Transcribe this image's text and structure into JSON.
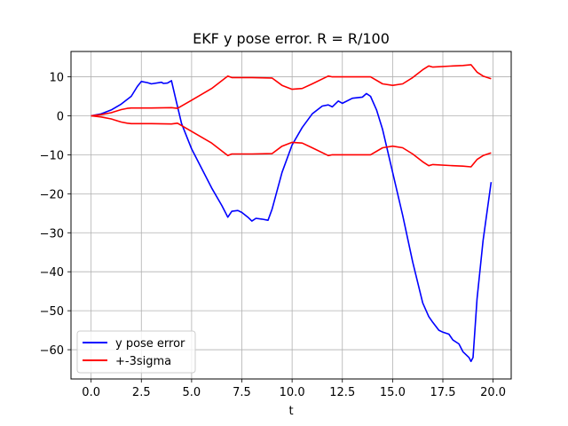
{
  "chart_data": {
    "type": "line",
    "title": "EKF y pose error. R = R/100",
    "xlabel": "t",
    "ylabel": "",
    "xlim": [
      -1.0,
      20.9
    ],
    "ylim": [
      -67.5,
      16.5
    ],
    "x_ticks": [
      0.0,
      2.5,
      5.0,
      7.5,
      10.0,
      12.5,
      15.0,
      17.5,
      20.0
    ],
    "x_tick_labels": [
      "0.0",
      "2.5",
      "5.0",
      "7.5",
      "10.0",
      "12.5",
      "15.0",
      "17.5",
      "20.0"
    ],
    "y_ticks": [
      10,
      0,
      -10,
      -20,
      -30,
      -40,
      -50,
      -60
    ],
    "y_tick_labels": [
      "10",
      "0",
      "−10",
      "−20",
      "−30",
      "−40",
      "−50",
      "−60"
    ],
    "grid": true,
    "legend_position": "lower-left",
    "series": [
      {
        "name": "y pose error",
        "color": "#0000ff",
        "x": [
          0,
          0.5,
          1.0,
          1.5,
          2.0,
          2.3,
          2.5,
          2.8,
          3.0,
          3.5,
          3.6,
          3.8,
          4.0,
          4.2,
          4.5,
          5.0,
          5.5,
          6.0,
          6.5,
          6.8,
          7.0,
          7.3,
          7.5,
          7.8,
          8.0,
          8.2,
          8.5,
          8.8,
          9.0,
          9.5,
          10.0,
          10.5,
          11.0,
          11.5,
          11.8,
          12.0,
          12.3,
          12.5,
          13.0,
          13.5,
          13.7,
          13.9,
          14.2,
          14.5,
          15.0,
          15.5,
          16.0,
          16.5,
          16.8,
          17.0,
          17.3,
          17.5,
          17.8,
          18.0,
          18.3,
          18.5,
          18.8,
          18.9,
          19.0,
          19.2,
          19.5,
          19.9
        ],
        "y": [
          0,
          0.5,
          1.5,
          3,
          5,
          7.5,
          8.8,
          8.5,
          8.2,
          8.6,
          8.3,
          8.4,
          9.0,
          4.5,
          -2,
          -8.5,
          -13.5,
          -18.5,
          -23,
          -26,
          -24.5,
          -24.3,
          -24.8,
          -26,
          -27,
          -26.3,
          -26.5,
          -26.8,
          -24,
          -14.5,
          -7.5,
          -3,
          0.5,
          2.5,
          2.8,
          2.3,
          3.8,
          3.2,
          4.5,
          4.8,
          5.7,
          5.0,
          1.5,
          -3.5,
          -14.5,
          -25.5,
          -37.5,
          -48,
          -51.5,
          -53,
          -55,
          -55.5,
          -56,
          -57.5,
          -58.5,
          -60.5,
          -62,
          -63,
          -62,
          -47,
          -32,
          -17
        ]
      },
      {
        "name": "+-3sigma",
        "color": "#ff0000",
        "x": [
          0,
          0.5,
          1.0,
          1.5,
          1.8,
          2.0,
          3.0,
          4.0,
          4.3,
          5.0,
          6.0,
          6.8,
          7.0,
          8.0,
          9.0,
          9.5,
          10.0,
          10.5,
          11.0,
          11.8,
          12.0,
          13.0,
          13.9,
          14.5,
          15.0,
          15.5,
          16.0,
          16.5,
          16.8,
          17.0,
          18.0,
          18.5,
          18.9,
          19.2,
          19.5,
          19.9
        ],
        "y": [
          0,
          0.3,
          0.8,
          1.6,
          1.9,
          2.0,
          2.0,
          2.1,
          1.9,
          4.0,
          7.0,
          10.2,
          9.8,
          9.8,
          9.7,
          7.8,
          6.8,
          7.0,
          8.2,
          10.2,
          10.0,
          10.0,
          10.0,
          8.2,
          7.8,
          8.2,
          9.8,
          11.8,
          12.8,
          12.5,
          12.8,
          12.9,
          13.1,
          11.2,
          10.2,
          9.5
        ]
      },
      {
        "name": "",
        "color": "#ff0000",
        "x": [
          0,
          0.5,
          1.0,
          1.5,
          1.8,
          2.0,
          3.0,
          4.0,
          4.3,
          5.0,
          6.0,
          6.8,
          7.0,
          8.0,
          9.0,
          9.5,
          10.0,
          10.5,
          11.0,
          11.8,
          12.0,
          13.0,
          13.9,
          14.5,
          15.0,
          15.5,
          16.0,
          16.5,
          16.8,
          17.0,
          18.0,
          18.5,
          18.9,
          19.2,
          19.5,
          19.9
        ],
        "y": [
          0,
          -0.3,
          -0.8,
          -1.6,
          -1.9,
          -2.0,
          -2.0,
          -2.1,
          -1.9,
          -4.0,
          -7.0,
          -10.2,
          -9.8,
          -9.8,
          -9.7,
          -7.8,
          -6.8,
          -7.0,
          -8.2,
          -10.2,
          -10.0,
          -10.0,
          -10.0,
          -8.2,
          -7.8,
          -8.2,
          -9.8,
          -11.8,
          -12.8,
          -12.5,
          -12.8,
          -12.9,
          -13.1,
          -11.2,
          -10.2,
          -9.5
        ]
      }
    ]
  }
}
